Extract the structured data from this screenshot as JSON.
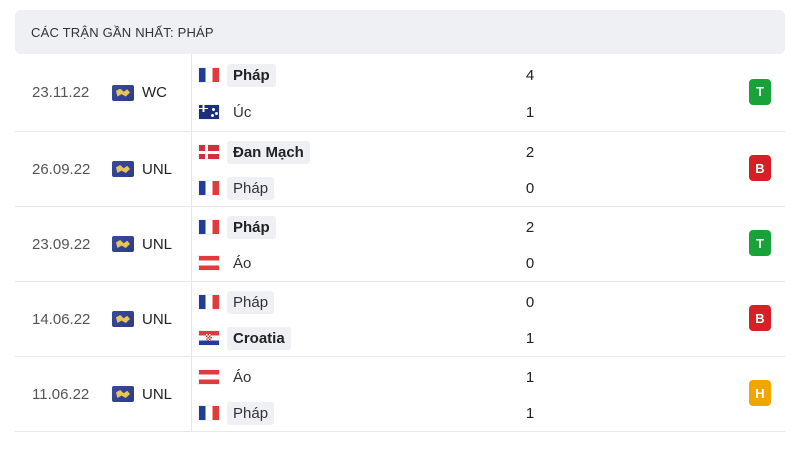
{
  "header": {
    "title": "CÁC TRẬN GẦN NHẤT: PHÁP"
  },
  "colors": {
    "win": "#1aa23a",
    "loss": "#d81f26",
    "draw": "#f0a500"
  },
  "matches": [
    {
      "date": "23.11.22",
      "competition": "WC",
      "home": {
        "name": "Pháp",
        "flag": "france-flag",
        "bold": true,
        "highlight": true
      },
      "away": {
        "name": "Úc",
        "flag": "australia-flag",
        "bold": false,
        "highlight": false
      },
      "home_score": "4",
      "away_score": "1",
      "result": "T",
      "result_type": "win"
    },
    {
      "date": "26.09.22",
      "competition": "UNL",
      "home": {
        "name": "Đan Mạch",
        "flag": "denmark-flag",
        "bold": true,
        "highlight": false
      },
      "away": {
        "name": "Pháp",
        "flag": "france-flag",
        "bold": false,
        "highlight": true
      },
      "home_score": "2",
      "away_score": "0",
      "result": "B",
      "result_type": "loss"
    },
    {
      "date": "23.09.22",
      "competition": "UNL",
      "home": {
        "name": "Pháp",
        "flag": "france-flag",
        "bold": true,
        "highlight": true
      },
      "away": {
        "name": "Áo",
        "flag": "austria-flag",
        "bold": false,
        "highlight": false
      },
      "home_score": "2",
      "away_score": "0",
      "result": "T",
      "result_type": "win"
    },
    {
      "date": "14.06.22",
      "competition": "UNL",
      "home": {
        "name": "Pháp",
        "flag": "france-flag",
        "bold": false,
        "highlight": true
      },
      "away": {
        "name": "Croatia",
        "flag": "croatia-flag",
        "bold": true,
        "highlight": false
      },
      "home_score": "0",
      "away_score": "1",
      "result": "B",
      "result_type": "loss"
    },
    {
      "date": "11.06.22",
      "competition": "UNL",
      "home": {
        "name": "Áo",
        "flag": "austria-flag",
        "bold": false,
        "highlight": false
      },
      "away": {
        "name": "Pháp",
        "flag": "france-flag",
        "bold": false,
        "highlight": true
      },
      "home_score": "1",
      "away_score": "1",
      "result": "H",
      "result_type": "draw"
    }
  ]
}
